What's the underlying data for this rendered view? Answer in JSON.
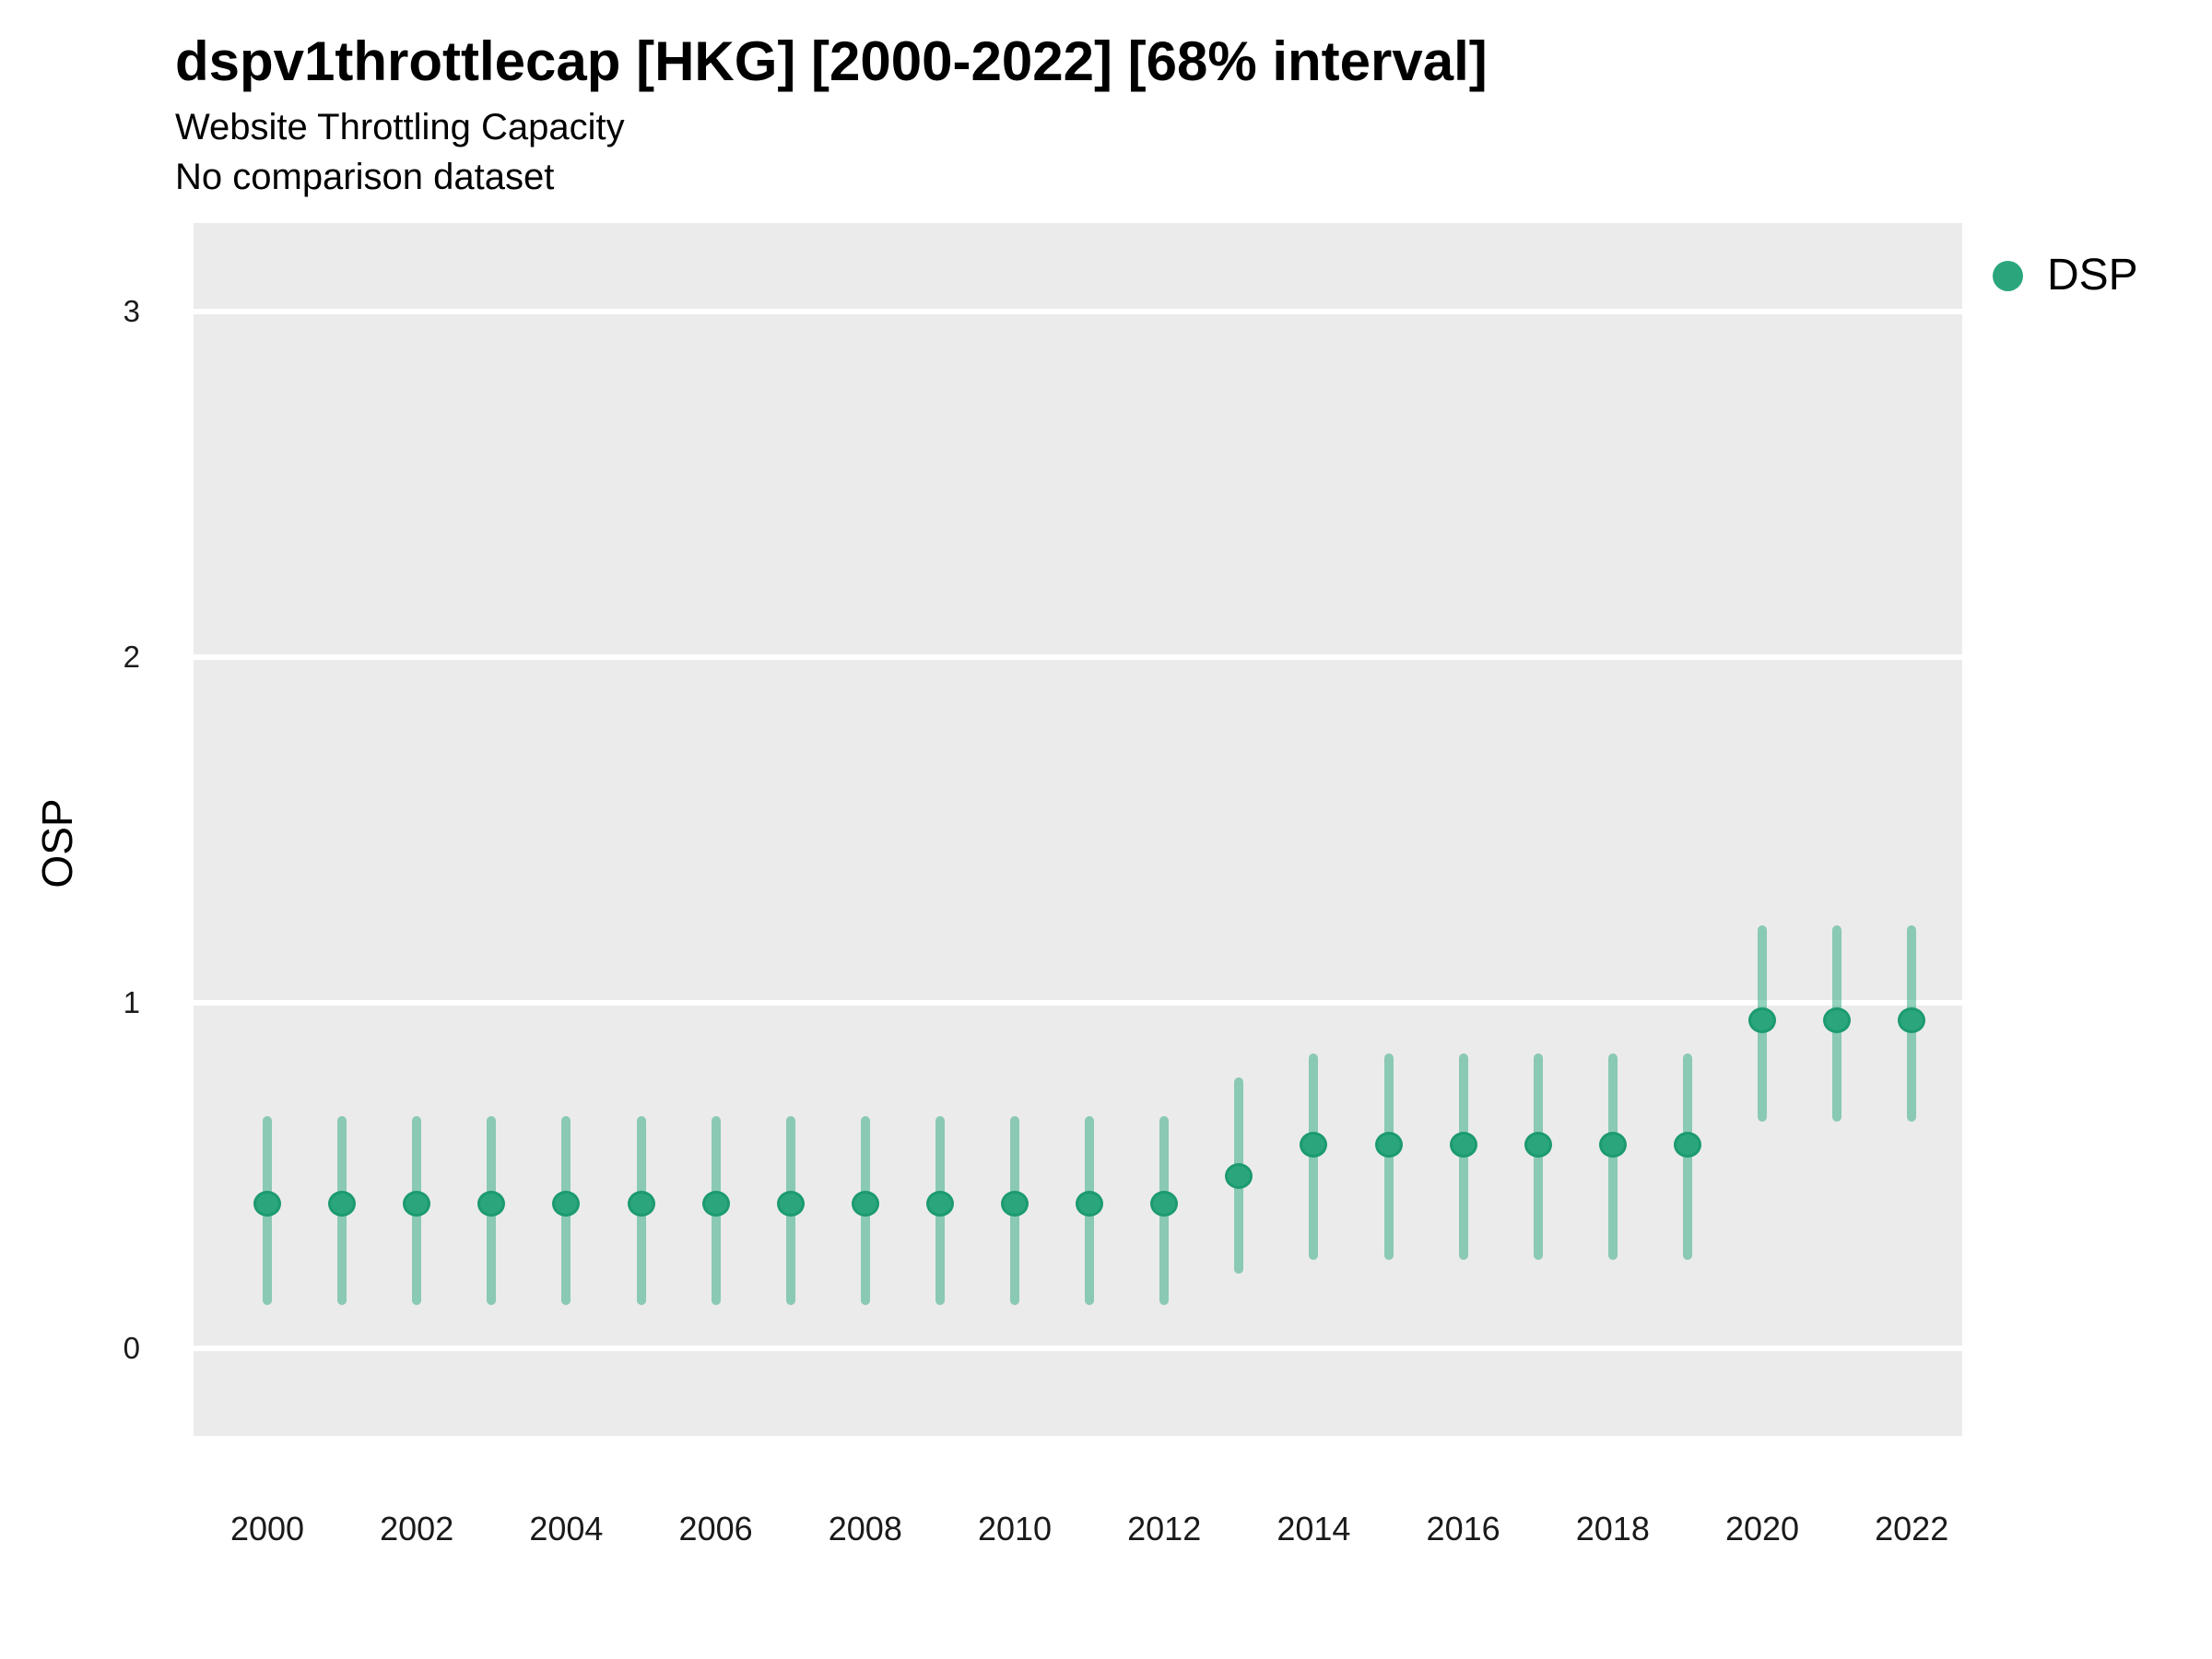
{
  "chart_data": {
    "type": "scatter",
    "title": "dspv1throttlecap [HKG] [2000-2022] [68% interval]",
    "subtitle": "Website Throttling Capacity",
    "note": "No comparison dataset",
    "xlabel": "",
    "ylabel": "OSP",
    "interval": "68%",
    "legend_position": "right",
    "grid": "major-horizontal-white-on-gray",
    "x_ticks": [
      2000,
      2002,
      2004,
      2006,
      2008,
      2010,
      2012,
      2014,
      2016,
      2018,
      2020,
      2022
    ],
    "y_ticks": [
      0,
      1,
      2,
      3
    ],
    "xlim": [
      1999.0,
      2022.7
    ],
    "ylim": [
      -0.25,
      3.26
    ],
    "legend": [
      {
        "label": "DSP",
        "color": "#2BA67C"
      }
    ],
    "colors": {
      "point": "#2BA67C",
      "point_stroke": "#1C9A70",
      "interval": "#29A87D",
      "interval_opacity": 0.5,
      "panel_bg": "#EBEBEB",
      "grid": "#FFFFFF",
      "text": "#000000"
    },
    "series": [
      {
        "name": "DSP",
        "points": [
          {
            "x": 2000,
            "y": 0.42,
            "lo": 0.14,
            "hi": 0.66
          },
          {
            "x": 2001,
            "y": 0.42,
            "lo": 0.14,
            "hi": 0.66
          },
          {
            "x": 2002,
            "y": 0.42,
            "lo": 0.14,
            "hi": 0.66
          },
          {
            "x": 2003,
            "y": 0.42,
            "lo": 0.14,
            "hi": 0.66
          },
          {
            "x": 2004,
            "y": 0.42,
            "lo": 0.14,
            "hi": 0.66
          },
          {
            "x": 2005,
            "y": 0.42,
            "lo": 0.14,
            "hi": 0.66
          },
          {
            "x": 2006,
            "y": 0.42,
            "lo": 0.14,
            "hi": 0.66
          },
          {
            "x": 2007,
            "y": 0.42,
            "lo": 0.14,
            "hi": 0.66
          },
          {
            "x": 2008,
            "y": 0.42,
            "lo": 0.14,
            "hi": 0.66
          },
          {
            "x": 2009,
            "y": 0.42,
            "lo": 0.14,
            "hi": 0.66
          },
          {
            "x": 2010,
            "y": 0.42,
            "lo": 0.14,
            "hi": 0.66
          },
          {
            "x": 2011,
            "y": 0.42,
            "lo": 0.14,
            "hi": 0.66
          },
          {
            "x": 2012,
            "y": 0.42,
            "lo": 0.14,
            "hi": 0.66
          },
          {
            "x": 2013,
            "y": 0.5,
            "lo": 0.23,
            "hi": 0.77
          },
          {
            "x": 2014,
            "y": 0.59,
            "lo": 0.27,
            "hi": 0.84
          },
          {
            "x": 2015,
            "y": 0.59,
            "lo": 0.27,
            "hi": 0.84
          },
          {
            "x": 2016,
            "y": 0.59,
            "lo": 0.27,
            "hi": 0.84
          },
          {
            "x": 2017,
            "y": 0.59,
            "lo": 0.27,
            "hi": 0.84
          },
          {
            "x": 2018,
            "y": 0.59,
            "lo": 0.27,
            "hi": 0.84
          },
          {
            "x": 2019,
            "y": 0.59,
            "lo": 0.27,
            "hi": 0.84
          },
          {
            "x": 2020,
            "y": 0.95,
            "lo": 0.67,
            "hi": 1.21
          },
          {
            "x": 2021,
            "y": 0.95,
            "lo": 0.67,
            "hi": 1.21
          },
          {
            "x": 2022,
            "y": 0.95,
            "lo": 0.67,
            "hi": 1.21
          }
        ]
      }
    ]
  }
}
